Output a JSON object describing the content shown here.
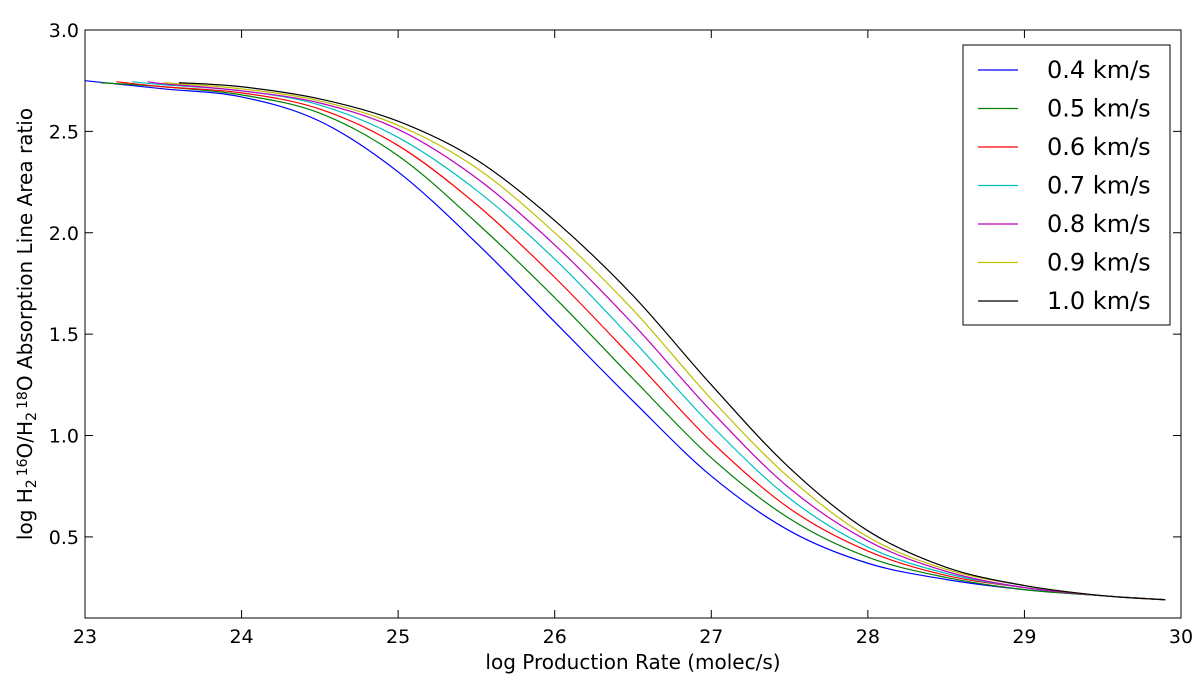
{
  "chart_data": {
    "type": "line",
    "xlabel": "log Production Rate (molec/s)",
    "ylabel": {
      "parts": [
        "log H",
        "2",
        "16",
        "O/H",
        "2",
        "18",
        "O Absorption Line Area ratio"
      ]
    },
    "xlim": [
      23,
      30
    ],
    "ylim": [
      0.1,
      3.0
    ],
    "xticks": [
      23,
      24,
      25,
      26,
      27,
      28,
      29,
      30
    ],
    "xtick_labels": [
      "23",
      "24",
      "25",
      "26",
      "27",
      "28",
      "29",
      "30"
    ],
    "yticks": [
      0.5,
      1.0,
      1.5,
      2.0,
      2.5,
      3.0
    ],
    "ytick_labels": [
      "0.5",
      "1.0",
      "1.5",
      "2.0",
      "2.5",
      "3.0"
    ],
    "grid": false,
    "legend_position": "top-right",
    "series": [
      {
        "name": "0.4 km/s",
        "color": "#0000ff",
        "x": [
          23.0,
          23.5,
          24.0,
          24.5,
          25.0,
          25.5,
          26.0,
          26.5,
          27.0,
          27.5,
          28.0,
          28.5,
          29.0,
          29.5,
          29.9
        ],
        "y": [
          2.75,
          2.71,
          2.67,
          2.55,
          2.3,
          1.95,
          1.56,
          1.17,
          0.8,
          0.53,
          0.37,
          0.29,
          0.24,
          0.21,
          0.19
        ]
      },
      {
        "name": "0.5 km/s",
        "color": "#008000",
        "x": [
          23.1,
          23.5,
          24.0,
          24.5,
          25.0,
          25.5,
          26.0,
          26.5,
          27.0,
          27.5,
          28.0,
          28.5,
          29.0,
          29.5,
          29.9
        ],
        "y": [
          2.74,
          2.72,
          2.68,
          2.59,
          2.38,
          2.05,
          1.68,
          1.28,
          0.89,
          0.59,
          0.4,
          0.3,
          0.24,
          0.21,
          0.19
        ]
      },
      {
        "name": "0.6 km/s",
        "color": "#ff0000",
        "x": [
          23.2,
          23.5,
          24.0,
          24.5,
          25.0,
          25.5,
          26.0,
          26.5,
          27.0,
          27.5,
          28.0,
          28.5,
          29.0,
          29.5,
          29.9
        ],
        "y": [
          2.745,
          2.72,
          2.69,
          2.61,
          2.43,
          2.14,
          1.78,
          1.38,
          0.97,
          0.64,
          0.43,
          0.31,
          0.25,
          0.21,
          0.19
        ]
      },
      {
        "name": "0.7 km/s",
        "color": "#00bfbf",
        "x": [
          23.3,
          23.5,
          24.0,
          24.5,
          25.0,
          25.5,
          26.0,
          26.5,
          27.0,
          27.5,
          28.0,
          28.5,
          29.0,
          29.5,
          29.9
        ],
        "y": [
          2.745,
          2.73,
          2.7,
          2.63,
          2.47,
          2.21,
          1.87,
          1.47,
          1.05,
          0.69,
          0.45,
          0.32,
          0.25,
          0.21,
          0.19
        ]
      },
      {
        "name": "0.8 km/s",
        "color": "#bf00bf",
        "x": [
          23.4,
          23.5,
          24.0,
          24.5,
          25.0,
          25.5,
          26.0,
          26.5,
          27.0,
          27.5,
          28.0,
          28.5,
          29.0,
          29.5,
          29.9
        ],
        "y": [
          2.745,
          2.735,
          2.7,
          2.64,
          2.51,
          2.27,
          1.94,
          1.55,
          1.12,
          0.74,
          0.48,
          0.33,
          0.25,
          0.21,
          0.19
        ]
      },
      {
        "name": "0.9 km/s",
        "color": "#bfbf00",
        "x": [
          23.5,
          24.0,
          24.5,
          25.0,
          25.5,
          26.0,
          26.5,
          27.0,
          27.5,
          28.0,
          28.5,
          29.0,
          29.5,
          29.9
        ],
        "y": [
          2.74,
          2.71,
          2.65,
          2.53,
          2.32,
          2.0,
          1.62,
          1.18,
          0.79,
          0.5,
          0.34,
          0.26,
          0.21,
          0.19
        ]
      },
      {
        "name": "1.0 km/s",
        "color": "#000000",
        "x": [
          23.6,
          24.0,
          24.5,
          25.0,
          25.5,
          26.0,
          26.5,
          27.0,
          27.5,
          28.0,
          28.5,
          29.0,
          29.5,
          29.9
        ],
        "y": [
          2.74,
          2.72,
          2.66,
          2.55,
          2.36,
          2.06,
          1.69,
          1.25,
          0.84,
          0.53,
          0.35,
          0.26,
          0.21,
          0.19
        ]
      }
    ]
  }
}
